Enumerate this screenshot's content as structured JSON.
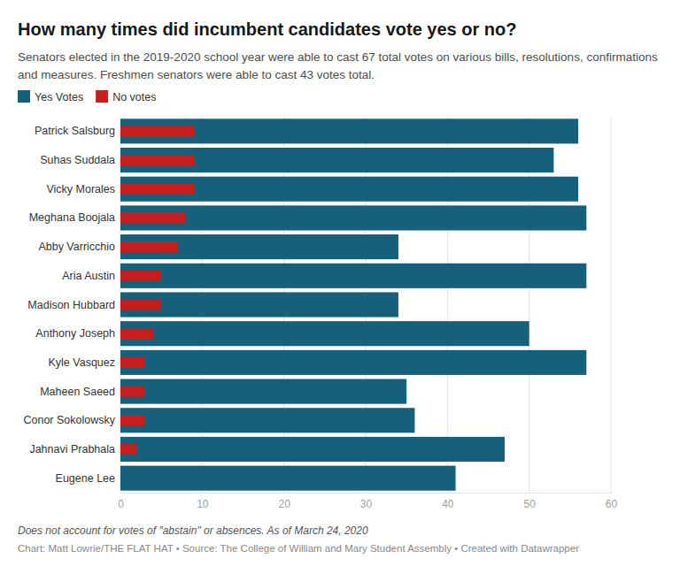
{
  "chart_data": {
    "type": "bar",
    "orientation": "horizontal",
    "title": "How many times did incumbent candidates vote yes or no?",
    "subtitle": "Senators elected in the 2019-2020 school year were able to cast 67 total votes on various bills, resolutions, confirmations and measures. Freshmen senators were able to cast 43 votes total.",
    "categories": [
      "Patrick Salsburg",
      "Suhas Suddala",
      "Vicky Morales",
      "Meghana Boojala",
      "Abby Varricchio",
      "Aria Austin",
      "Madison Hubbard",
      "Anthony Joseph",
      "Kyle Vasquez",
      "Maheen Saeed",
      "Conor Sokolowsky",
      "Jahnavi Prabhala",
      "Eugene Lee"
    ],
    "series": [
      {
        "name": "Yes Votes",
        "color": "#15607a",
        "values": [
          56,
          53,
          56,
          57,
          34,
          57,
          34,
          50,
          57,
          35,
          36,
          47,
          41
        ]
      },
      {
        "name": "No votes",
        "color": "#c71e1d",
        "values": [
          9,
          9,
          9,
          8,
          7,
          5,
          5,
          4,
          3,
          3,
          3,
          2,
          0
        ]
      }
    ],
    "xlim": [
      0,
      60
    ],
    "xticks": [
      0,
      10,
      20,
      30,
      40,
      50,
      60
    ],
    "grid": true,
    "legend": "top-left",
    "annotations": [
      "Does not account for votes of \"abstain\" or absences. As of March 24, 2020",
      "Chart: Matt Lowrie/THE FLAT HAT • Source: The College of William and Mary Student Assembly • Created with Datawrapper"
    ]
  }
}
